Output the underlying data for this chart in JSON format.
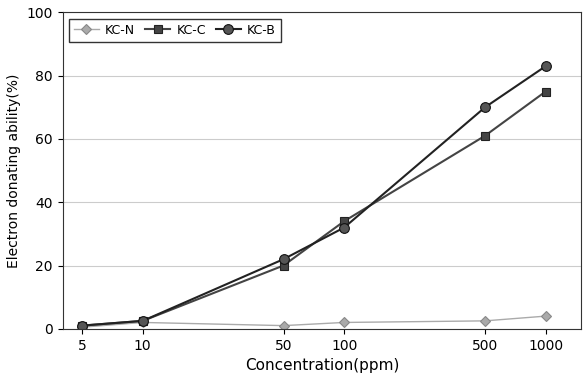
{
  "x": [
    5,
    10,
    50,
    100,
    500,
    1000
  ],
  "series": [
    {
      "label": "KC-N",
      "y": [
        0.5,
        2.0,
        1.0,
        2.0,
        2.5,
        4.0
      ],
      "color": "#aaaaaa",
      "marker": "D",
      "markersize": 5,
      "linewidth": 1.0,
      "markerfacecolor": "#aaaaaa",
      "markeredgecolor": "#888888"
    },
    {
      "label": "KC-C",
      "y": [
        1.0,
        2.5,
        20.0,
        34.0,
        61.0,
        75.0
      ],
      "color": "#444444",
      "marker": "s",
      "markersize": 6,
      "linewidth": 1.5,
      "markerfacecolor": "#444444",
      "markeredgecolor": "#222222"
    },
    {
      "label": "KC-B",
      "y": [
        1.0,
        2.5,
        22.0,
        32.0,
        70.0,
        83.0
      ],
      "color": "#222222",
      "marker": "o",
      "markersize": 7,
      "linewidth": 1.5,
      "markerfacecolor": "#555555",
      "markeredgecolor": "#111111"
    }
  ],
  "xlabel": "Concentration(ppm)",
  "ylabel": "Electron donating ability(%)",
  "ylim": [
    0,
    100
  ],
  "yticks": [
    0,
    20,
    40,
    60,
    80,
    100
  ],
  "xtick_labels": [
    "5",
    "10",
    "50",
    "100",
    "500",
    "1000"
  ],
  "legend_loc": "upper left",
  "background_color": "#ffffff",
  "grid_color": "#cccccc"
}
